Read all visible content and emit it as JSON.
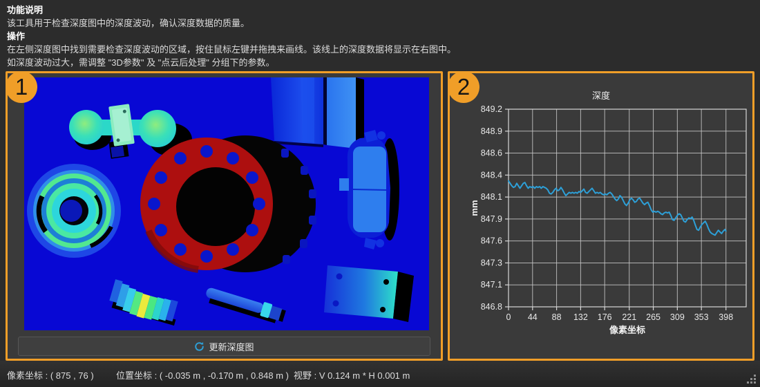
{
  "instructions": {
    "heading_function": "功能说明",
    "function_text": "该工具用于检查深度图中的深度波动，确认深度数据的质量。",
    "heading_operation": "操作",
    "operation_line1": "在左侧深度图中找到需要检查深度波动的区域，按住鼠标左键并拖拽来画线。该线上的深度数据将显示在右图中。",
    "operation_line2": "如深度波动过大，需调整 \"3D参数\" 及 \"点云后处理\" 分组下的参数。"
  },
  "left_panel": {
    "badge": "1",
    "update_button_label": "更新深度图",
    "refresh_icon": "refresh-icon"
  },
  "right_panel": {
    "badge": "2"
  },
  "chart_data": {
    "type": "line",
    "title": "深度",
    "xlabel": "像素坐标",
    "ylabel": "mm",
    "x_ticks": [
      0,
      44,
      88,
      132,
      176,
      221,
      265,
      309,
      353,
      398
    ],
    "y_ticks": [
      849.2,
      848.9,
      848.6,
      848.4,
      848.1,
      847.9,
      847.6,
      847.3,
      847.1,
      846.8
    ],
    "xlim": [
      0,
      435
    ],
    "ylim": [
      846.8,
      849.2
    ],
    "grid": true,
    "legend": false,
    "line_color": "#2da0d8",
    "series": [
      {
        "name": "深度",
        "points": [
          [
            0,
            848.33
          ],
          [
            3,
            848.3
          ],
          [
            6,
            848.27
          ],
          [
            9,
            848.25
          ],
          [
            12,
            848.26
          ],
          [
            15,
            848.3
          ],
          [
            18,
            848.27
          ],
          [
            21,
            848.24
          ],
          [
            24,
            848.27
          ],
          [
            27,
            848.3
          ],
          [
            30,
            848.31
          ],
          [
            33,
            848.27
          ],
          [
            36,
            848.24
          ],
          [
            39,
            848.26
          ],
          [
            42,
            848.25
          ],
          [
            45,
            848.26
          ],
          [
            48,
            848.24
          ],
          [
            51,
            848.26
          ],
          [
            54,
            848.25
          ],
          [
            57,
            848.26
          ],
          [
            60,
            848.24
          ],
          [
            63,
            848.26
          ],
          [
            66,
            848.25
          ],
          [
            69,
            848.24
          ],
          [
            72,
            848.22
          ],
          [
            75,
            848.18
          ],
          [
            78,
            848.17
          ],
          [
            81,
            848.19
          ],
          [
            84,
            848.22
          ],
          [
            87,
            848.24
          ],
          [
            90,
            848.21
          ],
          [
            93,
            848.22
          ],
          [
            96,
            848.25
          ],
          [
            99,
            848.22
          ],
          [
            102,
            848.18
          ],
          [
            105,
            848.15
          ],
          [
            108,
            848.17
          ],
          [
            111,
            848.19
          ],
          [
            114,
            848.18
          ],
          [
            117,
            848.19
          ],
          [
            120,
            848.18
          ],
          [
            123,
            848.19
          ],
          [
            126,
            848.18
          ],
          [
            129,
            848.2
          ],
          [
            132,
            848.19
          ],
          [
            135,
            848.21
          ],
          [
            138,
            848.23
          ],
          [
            141,
            848.19
          ],
          [
            144,
            848.18
          ],
          [
            147,
            848.2
          ],
          [
            150,
            848.22
          ],
          [
            153,
            848.24
          ],
          [
            156,
            848.21
          ],
          [
            159,
            848.18
          ],
          [
            162,
            848.19
          ],
          [
            165,
            848.18
          ],
          [
            168,
            848.19
          ],
          [
            171,
            848.17
          ],
          [
            174,
            848.16
          ],
          [
            177,
            848.17
          ],
          [
            180,
            848.16
          ],
          [
            183,
            848.18
          ],
          [
            186,
            848.19
          ],
          [
            189,
            848.17
          ],
          [
            192,
            848.14
          ],
          [
            195,
            848.11
          ],
          [
            198,
            848.09
          ],
          [
            201,
            848.11
          ],
          [
            204,
            848.15
          ],
          [
            207,
            848.13
          ],
          [
            210,
            848.09
          ],
          [
            213,
            848.05
          ],
          [
            216,
            848.03
          ],
          [
            219,
            848.06
          ],
          [
            222,
            848.1
          ],
          [
            225,
            848.12
          ],
          [
            228,
            848.1
          ],
          [
            231,
            848.07
          ],
          [
            234,
            848.08
          ],
          [
            237,
            848.11
          ],
          [
            240,
            848.12
          ],
          [
            243,
            848.09
          ],
          [
            246,
            848.06
          ],
          [
            249,
            848.04
          ],
          [
            252,
            848.06
          ],
          [
            255,
            848.07
          ],
          [
            258,
            848.03
          ],
          [
            261,
            847.98
          ],
          [
            264,
            847.95
          ],
          [
            267,
            847.96
          ],
          [
            270,
            847.95
          ],
          [
            273,
            847.96
          ],
          [
            276,
            847.95
          ],
          [
            279,
            847.93
          ],
          [
            282,
            847.92
          ],
          [
            285,
            847.94
          ],
          [
            288,
            847.95
          ],
          [
            291,
            847.94
          ],
          [
            294,
            847.95
          ],
          [
            297,
            847.91
          ],
          [
            300,
            847.86
          ],
          [
            303,
            847.85
          ],
          [
            306,
            847.88
          ],
          [
            309,
            847.91
          ],
          [
            312,
            847.93
          ],
          [
            315,
            847.92
          ],
          [
            318,
            847.88
          ],
          [
            321,
            847.84
          ],
          [
            324,
            847.83
          ],
          [
            327,
            847.86
          ],
          [
            330,
            847.88
          ],
          [
            333,
            847.87
          ],
          [
            336,
            847.89
          ],
          [
            339,
            847.85
          ],
          [
            342,
            847.79
          ],
          [
            345,
            847.74
          ],
          [
            348,
            847.73
          ],
          [
            351,
            847.77
          ],
          [
            354,
            847.8
          ],
          [
            357,
            847.82
          ],
          [
            360,
            847.84
          ],
          [
            363,
            847.8
          ],
          [
            366,
            847.75
          ],
          [
            369,
            847.71
          ],
          [
            372,
            847.69
          ],
          [
            375,
            847.68
          ],
          [
            378,
            847.67
          ],
          [
            381,
            847.7
          ],
          [
            384,
            847.73
          ],
          [
            387,
            847.71
          ],
          [
            390,
            847.69
          ],
          [
            393,
            847.72
          ],
          [
            396,
            847.74
          ],
          [
            398,
            847.72
          ]
        ]
      }
    ]
  },
  "status_bar": {
    "pixel_coord": "像素坐标 : ( 875 , 76 )",
    "position_coord": "位置坐标 : ( -0.035 m , -0.170 m , 0.848 m )",
    "fov": "视野 : V 0.124 m * H 0.001 m"
  },
  "colors": {
    "accent_orange": "#f09e28",
    "panel_background": "#3a3a3a",
    "page_background": "#2c2c2c",
    "depth_background_blue": "#0808d4",
    "chart_line_blue": "#2da0d8",
    "flange_red": "#ad0f0f"
  }
}
